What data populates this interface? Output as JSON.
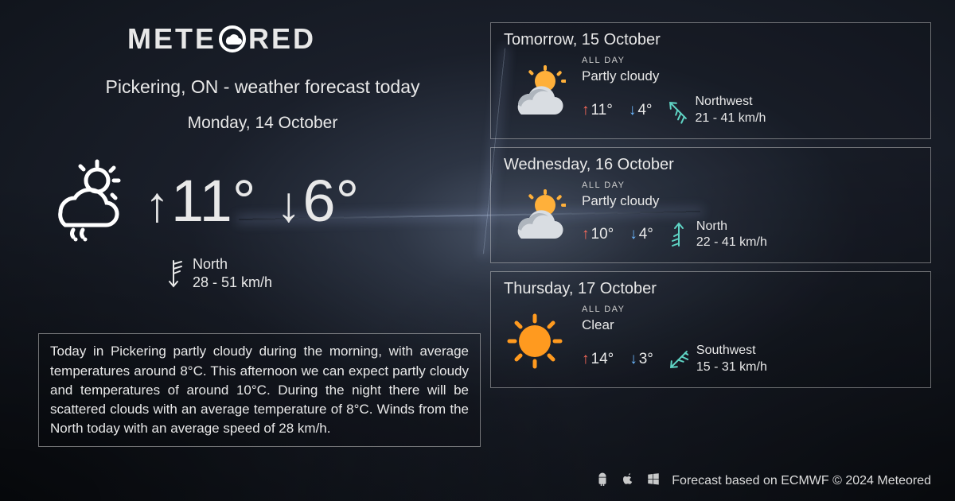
{
  "brand": {
    "pre": "METE",
    "post": "RED"
  },
  "title": "Pickering, ON - weather forecast today",
  "date": "Monday, 14 October",
  "today": {
    "high": "11°",
    "low": "6°",
    "wind_dir": "North",
    "wind_speed": "28 - 51 km/h"
  },
  "summary": "Today in Pickering partly cloudy during the morning, with average temperatures around 8°C. This afternoon we can expect partly cloudy and temperatures of around 10°C. During the night there will be scattered clouds with an average temperature of 8°C. Winds from the North today with an average speed of 28 km/h.",
  "days": [
    {
      "title": "Tomorrow, 15 October",
      "allday": "ALL DAY",
      "cond": "Partly cloudy",
      "high": "11°",
      "low": "4°",
      "wind_dir": "Northwest",
      "wind_speed": "21 - 41 km/h",
      "icon": "partly",
      "wind_color": "#5fd4c4",
      "wind_rot": 135
    },
    {
      "title": "Wednesday, 16 October",
      "allday": "ALL DAY",
      "cond": "Partly cloudy",
      "high": "10°",
      "low": "4°",
      "wind_dir": "North",
      "wind_speed": "22 - 41 km/h",
      "icon": "partly",
      "wind_color": "#5fd4c4",
      "wind_rot": 180
    },
    {
      "title": "Thursday, 17 October",
      "allday": "ALL DAY",
      "cond": "Clear",
      "high": "14°",
      "low": "3°",
      "wind_dir": "Southwest",
      "wind_speed": "15 - 31 km/h",
      "icon": "clear",
      "wind_color": "#5fd4c4",
      "wind_rot": 45
    }
  ],
  "footer": "Forecast based on ECMWF © 2024 Meteored",
  "colors": {
    "high_arrow": "#ff6b5b",
    "low_arrow": "#6db8ff",
    "sun": "#ffb03a",
    "sun_clear": "#ff9a1f",
    "cloud": "#d9dde2",
    "cloud_shadow": "#aeb5bd"
  }
}
